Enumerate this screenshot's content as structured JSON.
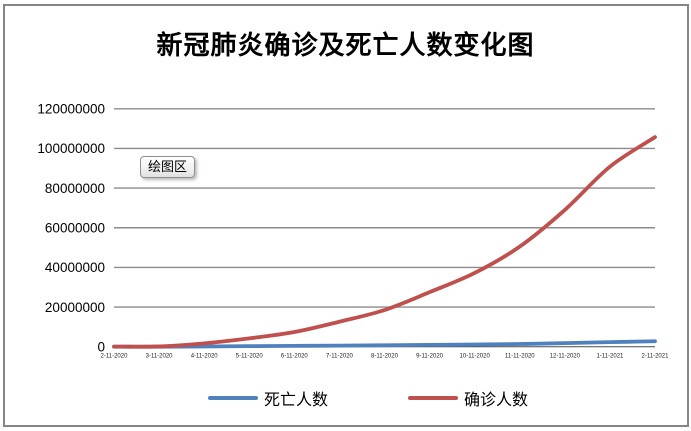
{
  "window": {
    "background": "#ffffff",
    "border_color": "#858585"
  },
  "tooltip": {
    "label": "绘图区"
  },
  "chart_data": {
    "type": "line",
    "title": "新冠肺炎确诊及死亡人数变化图",
    "categories": [
      "2-11-2020",
      "3-11-2020",
      "4-11-2020",
      "5-11-2020",
      "6-11-2020",
      "7-11-2020",
      "8-11-2020",
      "9-11-2020",
      "10-11-2020",
      "11-11-2020",
      "12-11-2020",
      "1-11-2021",
      "2-11-2021"
    ],
    "series": [
      {
        "id": "deaths",
        "name": "死亡人数",
        "color": "#4F81BD",
        "values": [
          1100,
          4600,
          103000,
          286000,
          417000,
          555000,
          737000,
          910000,
          1070000,
          1350000,
          1800000,
          2300000,
          2750000
        ]
      },
      {
        "id": "confirmed",
        "name": "确诊人数",
        "color": "#C0504D",
        "values": [
          45000,
          126000,
          1700000,
          4200000,
          7400000,
          12600000,
          18500000,
          27500000,
          37200000,
          50500000,
          69000000,
          90800000,
          105700000
        ]
      }
    ],
    "xlabel": "",
    "ylabel": "",
    "ylim": [
      0,
      120000000
    ],
    "yticks": [
      0,
      20000000,
      40000000,
      60000000,
      80000000,
      100000000,
      120000000
    ],
    "grid": true,
    "grid_color": "#8B8B8B",
    "axis_color": "#4A4A4A",
    "y_tick_label_color": "#000000",
    "x_tick_label_color": "#1a1a1a",
    "legend_position": "bottom"
  }
}
